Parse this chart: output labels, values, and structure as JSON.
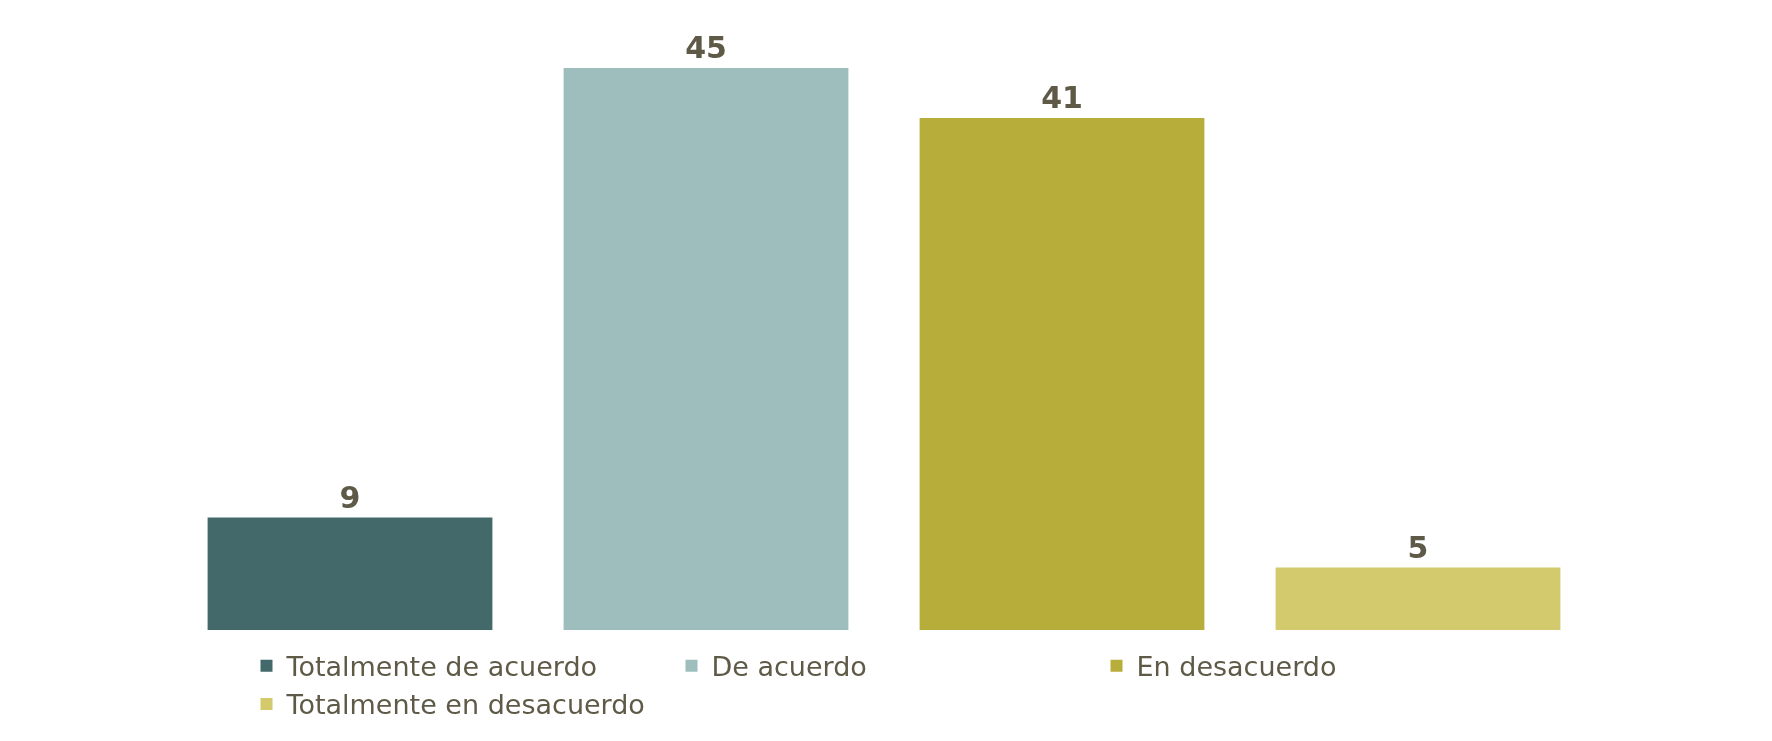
{
  "chart_data": {
    "type": "bar",
    "categories": [
      null
    ],
    "series": [
      {
        "name": "Totalmente de acuerdo",
        "color": "#44696a",
        "values": [
          9
        ]
      },
      {
        "name": "De acuerdo",
        "color": "#9ebebe",
        "values": [
          45
        ]
      },
      {
        "name": "En desacuerdo",
        "color": "#b7ad3a",
        "values": [
          41
        ]
      },
      {
        "name": "Totalmente en desacuerdo",
        "color": "#d3ca6e",
        "values": [
          5
        ]
      }
    ],
    "data_labels": true,
    "legend": "bottom",
    "grid": false
  }
}
